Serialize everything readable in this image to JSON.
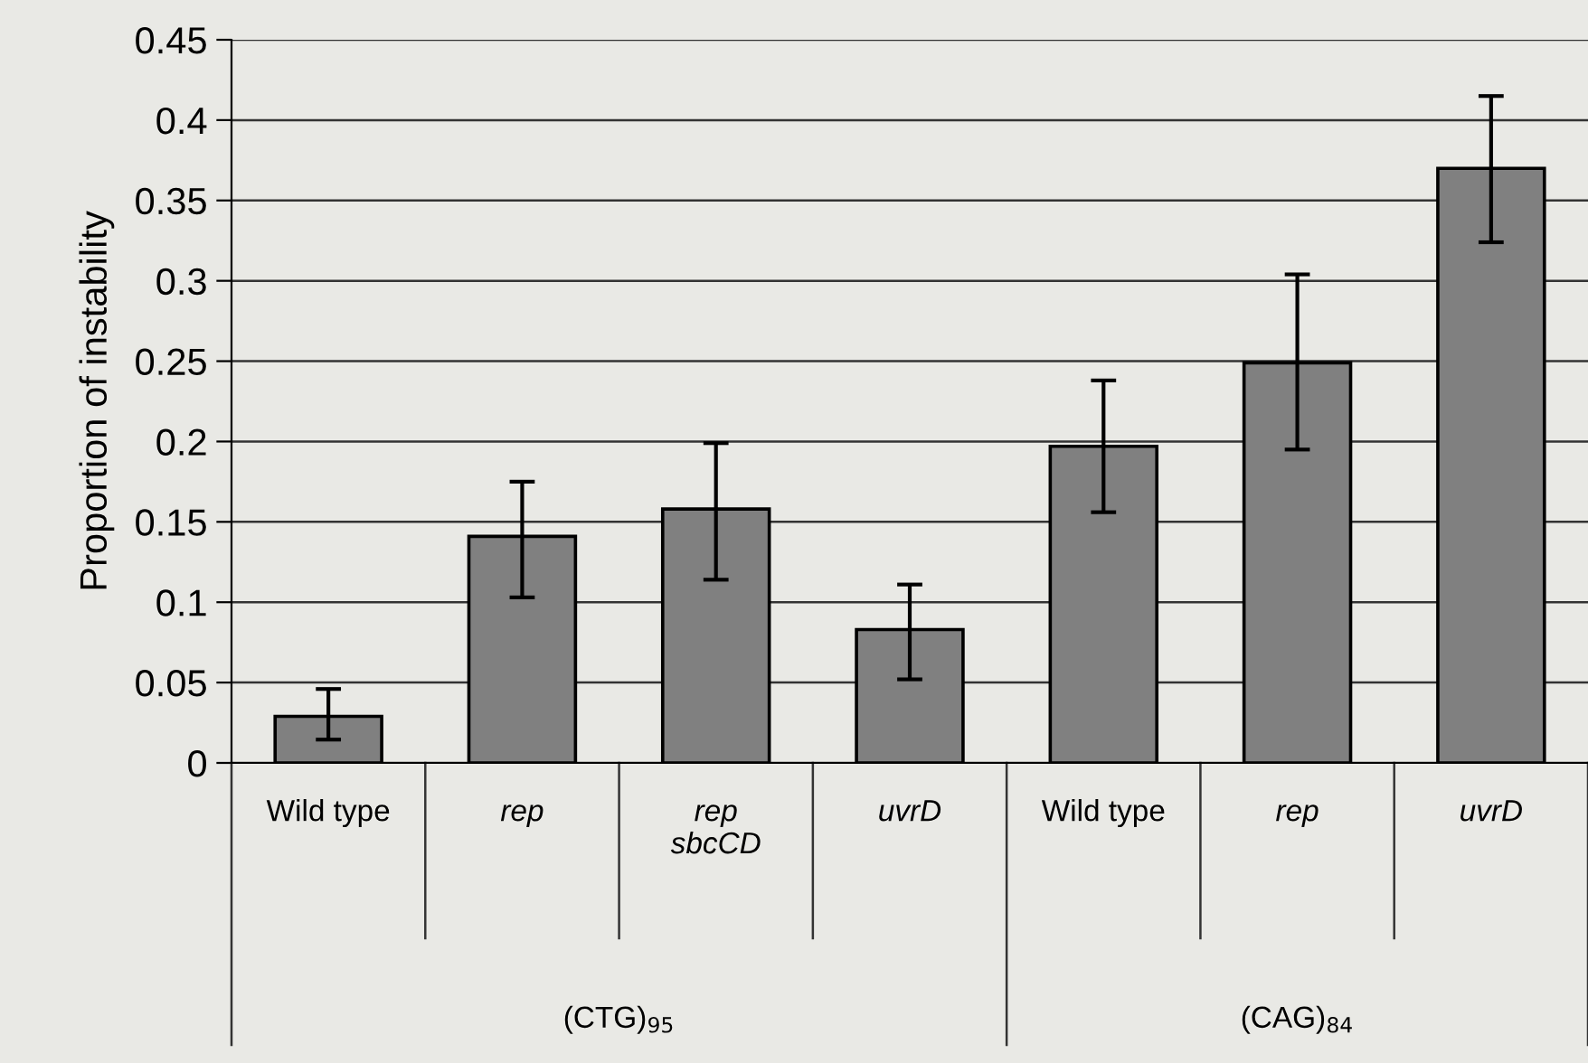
{
  "chart_data": {
    "type": "bar",
    "ylabel": "Proportion of instability",
    "categories": [
      "Wild type",
      "rep",
      "rep\nsbcCD",
      "uvrD",
      "Wild type",
      "rep",
      "uvrD"
    ],
    "values": [
      0.029,
      0.141,
      0.158,
      0.083,
      0.197,
      0.249,
      0.37
    ],
    "errors": [
      [
        0.0145,
        0.046
      ],
      [
        0.103,
        0.175
      ],
      [
        0.114,
        0.199
      ],
      [
        0.052,
        0.111
      ],
      [
        0.156,
        0.238
      ],
      [
        0.195,
        0.304
      ],
      [
        0.324,
        0.415
      ]
    ],
    "color": "#808080",
    "annotations": [
      "(CTG)$_{95}$",
      "(CAG)$_{84}$"
    ],
    "ylim": [
      0,
      0.45
    ],
    "yticks": [
      0,
      {
        "value": 0.05,
        "label": "0.05"
      },
      0.1,
      0.15,
      0.2,
      0.25,
      0.3,
      0.35,
      0.4,
      0.45
    ],
    "grid": "y"
  }
}
